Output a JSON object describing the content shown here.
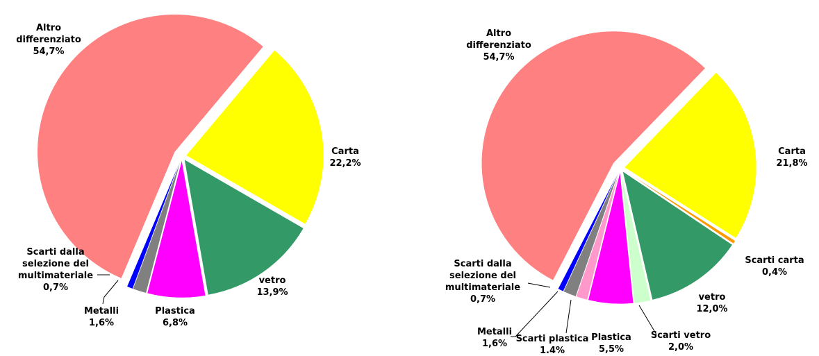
{
  "chart_data": [
    {
      "type": "pie",
      "categories": [
        "Carta",
        "vetro",
        "Plastica",
        "Metalli",
        "Scarti dalla selezione del multimateriale",
        "Altro differenziato"
      ],
      "values": [
        22.2,
        13.9,
        6.8,
        1.6,
        0.7,
        54.7
      ],
      "value_labels": [
        "22,2%",
        "13,9%",
        "6,8%",
        "1,6%",
        "0,7%",
        "54,7%"
      ],
      "colors": [
        "#ffff00",
        "#339966",
        "#ff00ff",
        "#808080",
        "#0000ff",
        "#ff8080"
      ]
    },
    {
      "type": "pie",
      "categories": [
        "Carta",
        "Scarti carta",
        "vetro",
        "Scarti vetro",
        "Plastica",
        "Scarti plastica",
        "Metalli",
        "Scarti dalla selezione del multimateriale",
        "Altro differenziato"
      ],
      "values": [
        21.8,
        0.4,
        12.0,
        2.0,
        5.5,
        1.4,
        1.6,
        0.7,
        54.7
      ],
      "value_labels": [
        "21,8%",
        "0,4%",
        "12,0%",
        "2,0%",
        "5,5%",
        "1.4%",
        "1,6%",
        "0,7%",
        "54,7%"
      ],
      "colors": [
        "#ffff00",
        "#ff9900",
        "#339966",
        "#ccffcc",
        "#ff00ff",
        "#ff99cc",
        "#808080",
        "#0000ff",
        "#ff8080"
      ]
    }
  ]
}
